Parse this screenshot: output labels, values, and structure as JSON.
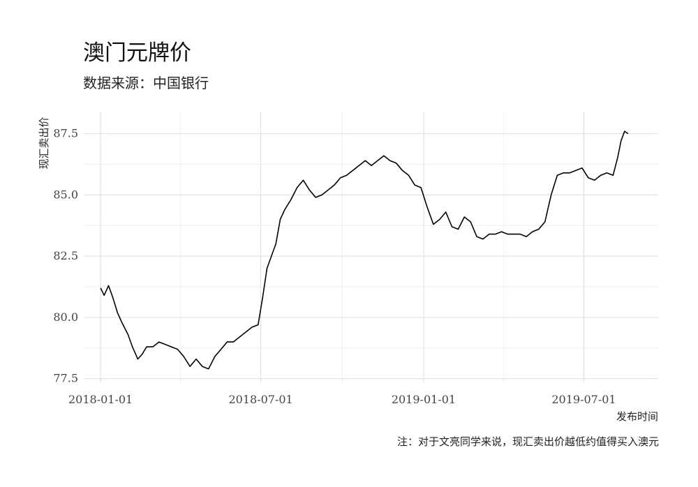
{
  "title": "澳门元牌价",
  "subtitle": "数据来源：中国银行",
  "caption": "注：对于文亮同学来说，现汇卖出价越低约值得买入澳元",
  "colors": {
    "line": "#000000",
    "grid_major": "#dcdcdc",
    "grid_minor": "#eeeeee",
    "background": "#ffffff"
  },
  "chart_data": {
    "type": "line",
    "title": "澳门元牌价",
    "subtitle": "数据来源：中国银行",
    "xlabel": "发布时间",
    "ylabel": "现汇卖出价",
    "x_ticks": [
      "2018-01-01",
      "2018-07-01",
      "2019-01-01",
      "2019-07-01"
    ],
    "y_ticks": [
      77.5,
      80.0,
      82.5,
      85.0,
      87.5
    ],
    "y_tick_labels": [
      "77.5",
      "80.0",
      "82.5",
      "85.0",
      "87.5"
    ],
    "xlim": [
      "2017-12-13",
      "2019-09-23"
    ],
    "ylim": [
      77.35,
      88.4
    ],
    "grid": true,
    "legend": "none",
    "series": [
      {
        "x": [
          "2018-01-01",
          "2018-01-05",
          "2018-01-10",
          "2018-01-15",
          "2018-01-20",
          "2018-01-25",
          "2018-02-01",
          "2018-02-06",
          "2018-02-12",
          "2018-02-17",
          "2018-02-22",
          "2018-03-01",
          "2018-03-08",
          "2018-03-15",
          "2018-03-22",
          "2018-03-29",
          "2018-04-05",
          "2018-04-12",
          "2018-04-19",
          "2018-04-26",
          "2018-05-03",
          "2018-05-10",
          "2018-05-17",
          "2018-05-24",
          "2018-05-31",
          "2018-06-07",
          "2018-06-14",
          "2018-06-21",
          "2018-06-28",
          "2018-07-03",
          "2018-07-08",
          "2018-07-13",
          "2018-07-18",
          "2018-07-23",
          "2018-07-28",
          "2018-08-04",
          "2018-08-11",
          "2018-08-18",
          "2018-08-25",
          "2018-09-01",
          "2018-09-08",
          "2018-09-15",
          "2018-09-22",
          "2018-09-29",
          "2018-10-06",
          "2018-10-13",
          "2018-10-20",
          "2018-10-27",
          "2018-11-03",
          "2018-11-10",
          "2018-11-17",
          "2018-11-24",
          "2018-12-01",
          "2018-12-08",
          "2018-12-15",
          "2018-12-22",
          "2018-12-29",
          "2019-01-05",
          "2019-01-12",
          "2019-01-19",
          "2019-01-26",
          "2019-02-02",
          "2019-02-09",
          "2019-02-16",
          "2019-02-23",
          "2019-03-02",
          "2019-03-09",
          "2019-03-16",
          "2019-03-23",
          "2019-03-30",
          "2019-04-06",
          "2019-04-13",
          "2019-04-20",
          "2019-04-27",
          "2019-05-04",
          "2019-05-11",
          "2019-05-18",
          "2019-05-25",
          "2019-06-01",
          "2019-06-08",
          "2019-06-15",
          "2019-06-22",
          "2019-06-29",
          "2019-07-06",
          "2019-07-13",
          "2019-07-20",
          "2019-07-27",
          "2019-08-03",
          "2019-08-08",
          "2019-08-12",
          "2019-08-16",
          "2019-08-20"
        ],
        "y": [
          81.2,
          80.9,
          81.3,
          80.8,
          80.2,
          79.8,
          79.3,
          78.8,
          78.3,
          78.5,
          78.8,
          78.8,
          79.0,
          78.9,
          78.8,
          78.7,
          78.4,
          78.0,
          78.3,
          78.0,
          77.9,
          78.4,
          78.7,
          79.0,
          79.0,
          79.2,
          79.4,
          79.6,
          79.7,
          80.8,
          82.0,
          82.5,
          83.0,
          84.0,
          84.4,
          84.8,
          85.3,
          85.6,
          85.2,
          84.9,
          85.0,
          85.2,
          85.4,
          85.7,
          85.8,
          86.0,
          86.2,
          86.4,
          86.2,
          86.4,
          86.6,
          86.4,
          86.3,
          86.0,
          85.8,
          85.4,
          85.3,
          84.5,
          83.8,
          84.0,
          84.3,
          83.7,
          83.6,
          84.1,
          83.9,
          83.3,
          83.2,
          83.4,
          83.4,
          83.5,
          83.4,
          83.4,
          83.4,
          83.3,
          83.5,
          83.6,
          83.9,
          85.0,
          85.8,
          85.9,
          85.9,
          86.0,
          86.1,
          85.7,
          85.6,
          85.8,
          85.9,
          85.8,
          86.5,
          87.2,
          87.6,
          87.5
        ]
      }
    ]
  }
}
